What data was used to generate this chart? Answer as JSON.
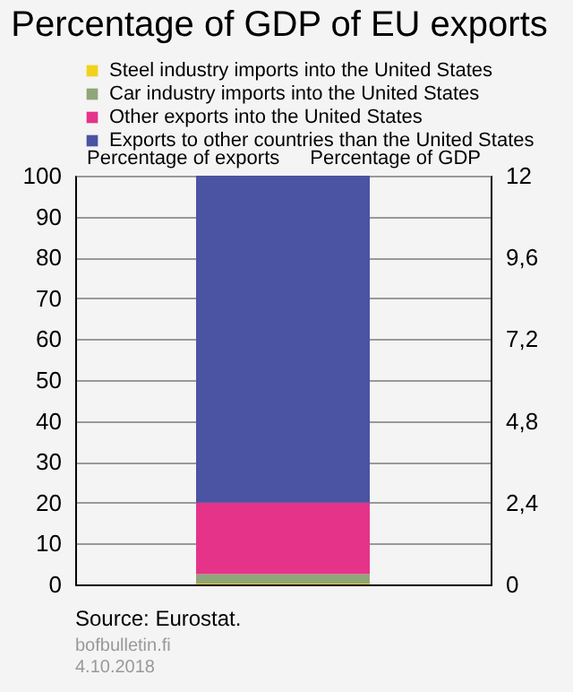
{
  "chart_data": {
    "type": "bar",
    "title": "Percentage of GDP of EU exports",
    "categories": [
      null
    ],
    "series": [
      {
        "name": "Steel industry imports into the United States",
        "color": "#f2d21c",
        "values": [
          0.2
        ]
      },
      {
        "name": "Car industry imports into the United States",
        "color": "#8fa67a",
        "values": [
          2.3
        ]
      },
      {
        "name": "Other exports into the United States",
        "color": "#e5338a",
        "values": [
          17.5
        ]
      },
      {
        "name": "Exports to other countries than the United States",
        "color": "#4b53a3",
        "values": [
          80
        ]
      }
    ],
    "stacked": true,
    "ylabel": "Percentage of exports",
    "y2label": "Percentage of GDP",
    "ylim": [
      0,
      100
    ],
    "yticks": [
      0,
      10,
      20,
      30,
      40,
      50,
      60,
      70,
      80,
      90,
      100
    ],
    "y2lim": [
      0,
      12
    ],
    "y2ticks": [
      0,
      {
        "value": 2.4,
        "label": "2,4"
      },
      {
        "value": 4.8,
        "label": "4,8"
      },
      {
        "value": 7.2,
        "label": "7,2"
      },
      {
        "value": 9.6,
        "label": "9,6"
      },
      12
    ],
    "grid": "y",
    "legend": "top",
    "annotations": [
      "Source: Eurostat.",
      "bofbulletin.fi",
      "4.10.2018"
    ]
  }
}
